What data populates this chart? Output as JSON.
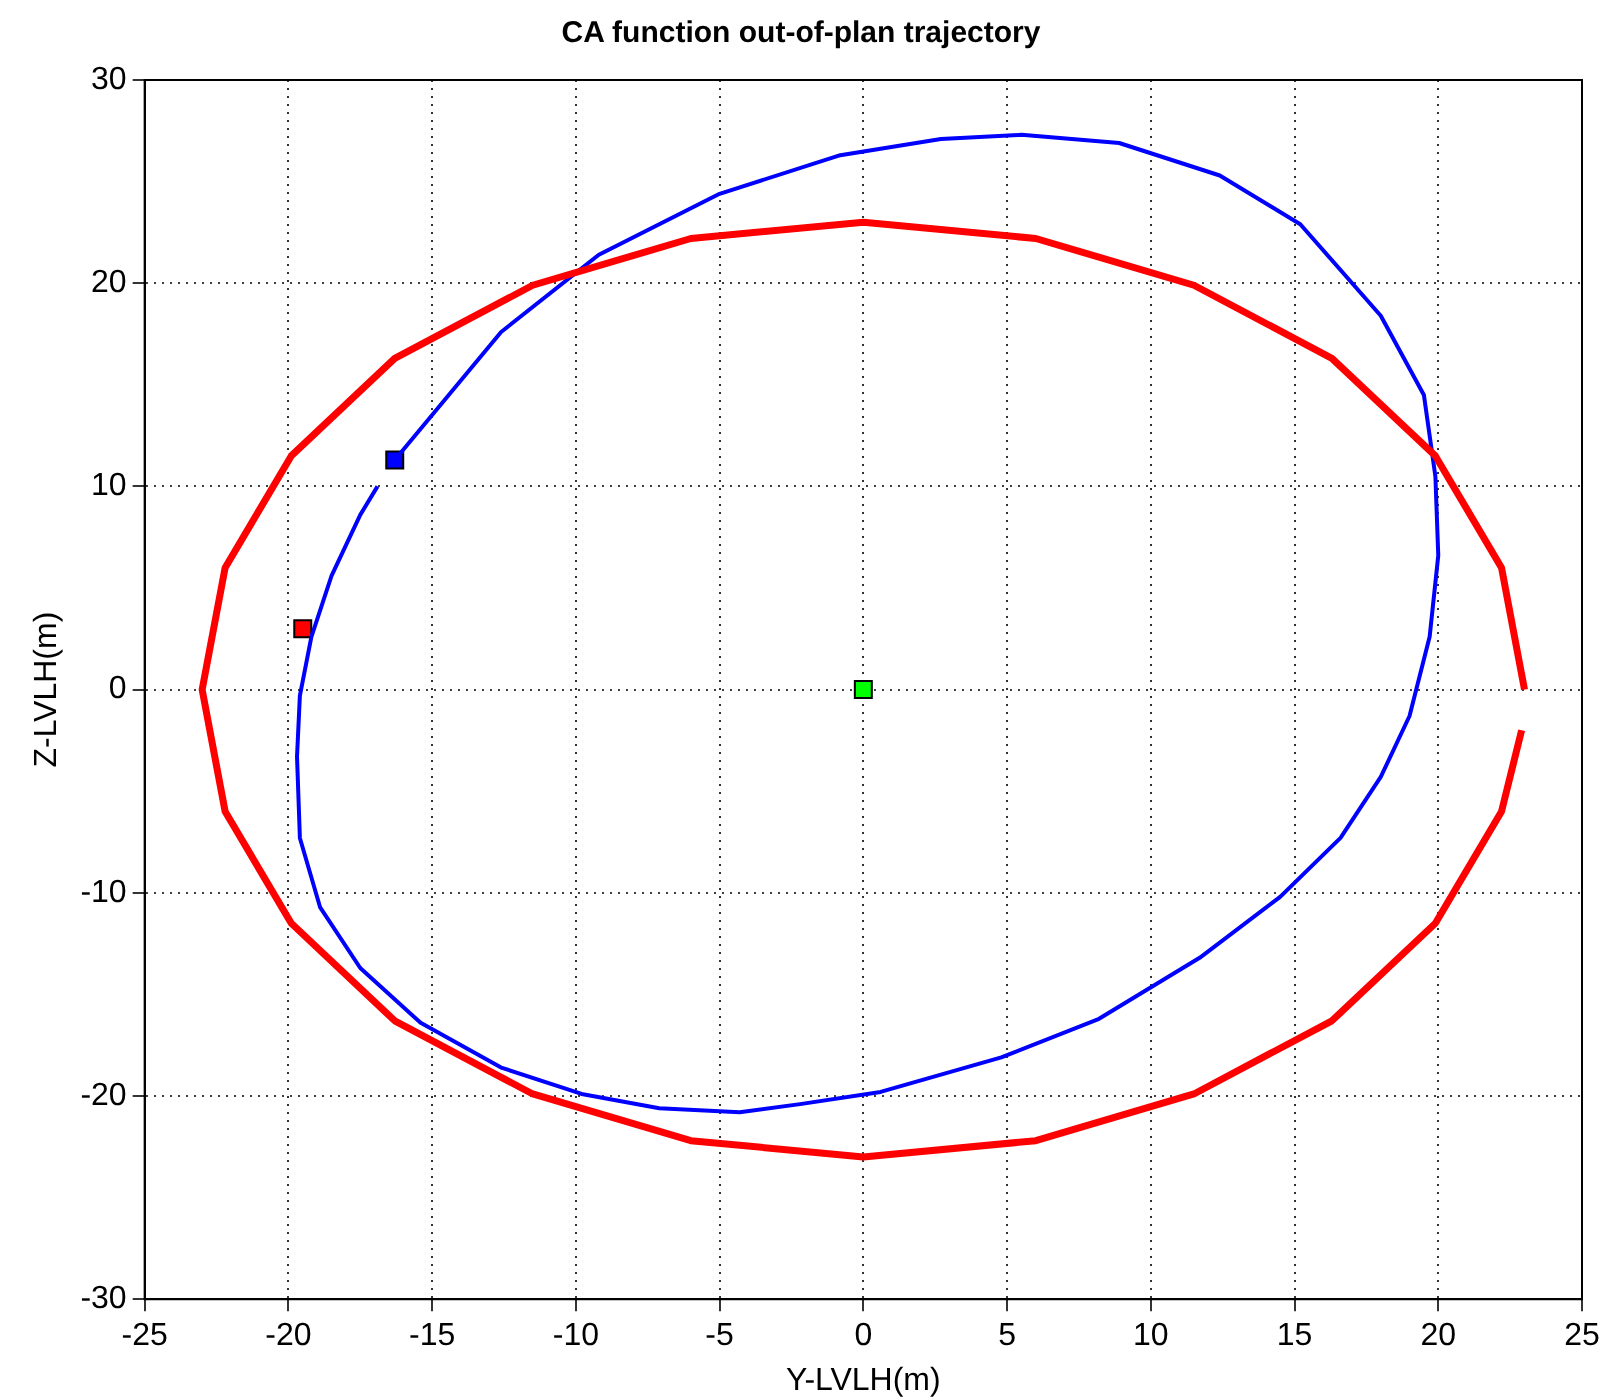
{
  "chart_data": {
    "type": "line",
    "title": "CA function out-of-plan trajectory",
    "xlabel": "Y-LVLH(m)",
    "ylabel": "Z-LVLH(m)",
    "xlim": [
      -25,
      25
    ],
    "xticks": [
      -25,
      -20,
      -15,
      -10,
      -5,
      0,
      5,
      10,
      15,
      20,
      25
    ],
    "ylim": [
      -30,
      30
    ],
    "yticks": [
      -30,
      -20,
      -10,
      0,
      10,
      20,
      30
    ],
    "grid": true,
    "legend": false,
    "series": [
      {
        "type": "line",
        "color": "#ff0000",
        "marker": "none",
        "x": [
          23,
          22.2,
          19.9,
          16.3,
          11.5,
          6,
          0,
          -6,
          -11.5,
          -16.3,
          -19.9,
          -22.2,
          -23,
          -22.2,
          -19.9,
          -16.3,
          -11.5,
          -6,
          0,
          6,
          11.5,
          16.3,
          19.9,
          22.2,
          22.9
        ],
        "values": [
          0,
          6,
          11.5,
          16.3,
          19.9,
          22.2,
          23,
          22.2,
          19.9,
          16.3,
          11.5,
          6,
          0,
          -6,
          -11.5,
          -16.3,
          -19.9,
          -22.2,
          -23,
          -22.2,
          -19.9,
          -16.3,
          -11.5,
          -6,
          -2
        ]
      },
      {
        "type": "line",
        "color": "#0000ff",
        "marker": "none",
        "x": [
          -16.3,
          -12.6,
          -9.2,
          -5,
          -0.8,
          2.7,
          5.5,
          8.9,
          12.4,
          15.2,
          18,
          19.5,
          19.9,
          20,
          19.7,
          19,
          18,
          16.6,
          14.5,
          11.7,
          8.2,
          4.8,
          0.6,
          -2.2,
          -4.3,
          -7.1,
          -9.8,
          -12.6,
          -15.4,
          -17.5,
          -18.9,
          -19.6,
          -19.7,
          -19.6,
          -19.2,
          -18.5,
          -17.5,
          -16.9
        ],
        "values": [
          11.3,
          17.6,
          21.4,
          24.4,
          26.3,
          27.1,
          27.3,
          26.9,
          25.3,
          22.9,
          18.4,
          14.5,
          10.5,
          6.6,
          2.6,
          -1.3,
          -4.3,
          -7.3,
          -10.2,
          -13.2,
          -16.2,
          -18.1,
          -19.8,
          -20.4,
          -20.8,
          -20.6,
          -19.9,
          -18.6,
          -16.4,
          -13.7,
          -10.7,
          -7.3,
          -3.3,
          -0.3,
          2.6,
          5.6,
          8.6,
          10
        ]
      },
      {
        "type": "scatter",
        "color": "#0000ff",
        "marker": "square",
        "x": [
          -16.3
        ],
        "values": [
          11.3
        ]
      },
      {
        "type": "scatter",
        "color": "#ff0000",
        "marker": "square",
        "x": [
          -19.5
        ],
        "values": [
          3
        ]
      },
      {
        "type": "scatter",
        "color": "#00ff00",
        "marker": "square",
        "x": [
          0
        ],
        "values": [
          0
        ]
      }
    ]
  }
}
